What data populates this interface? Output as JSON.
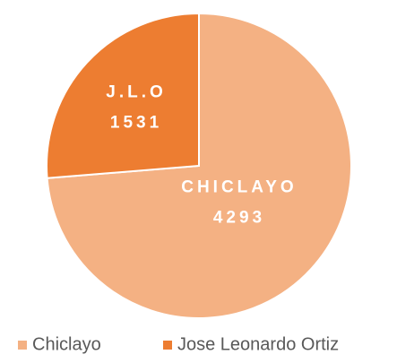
{
  "chart_data": {
    "type": "pie",
    "categories": [
      "Chiclayo",
      "Jose Leonardo Ortiz"
    ],
    "values": [
      4293,
      1531
    ],
    "slice_labels": [
      "CHICLAYO",
      "J.L.O"
    ],
    "colors": [
      "#f4b183",
      "#ed7d31"
    ],
    "legend": "bottom"
  }
}
